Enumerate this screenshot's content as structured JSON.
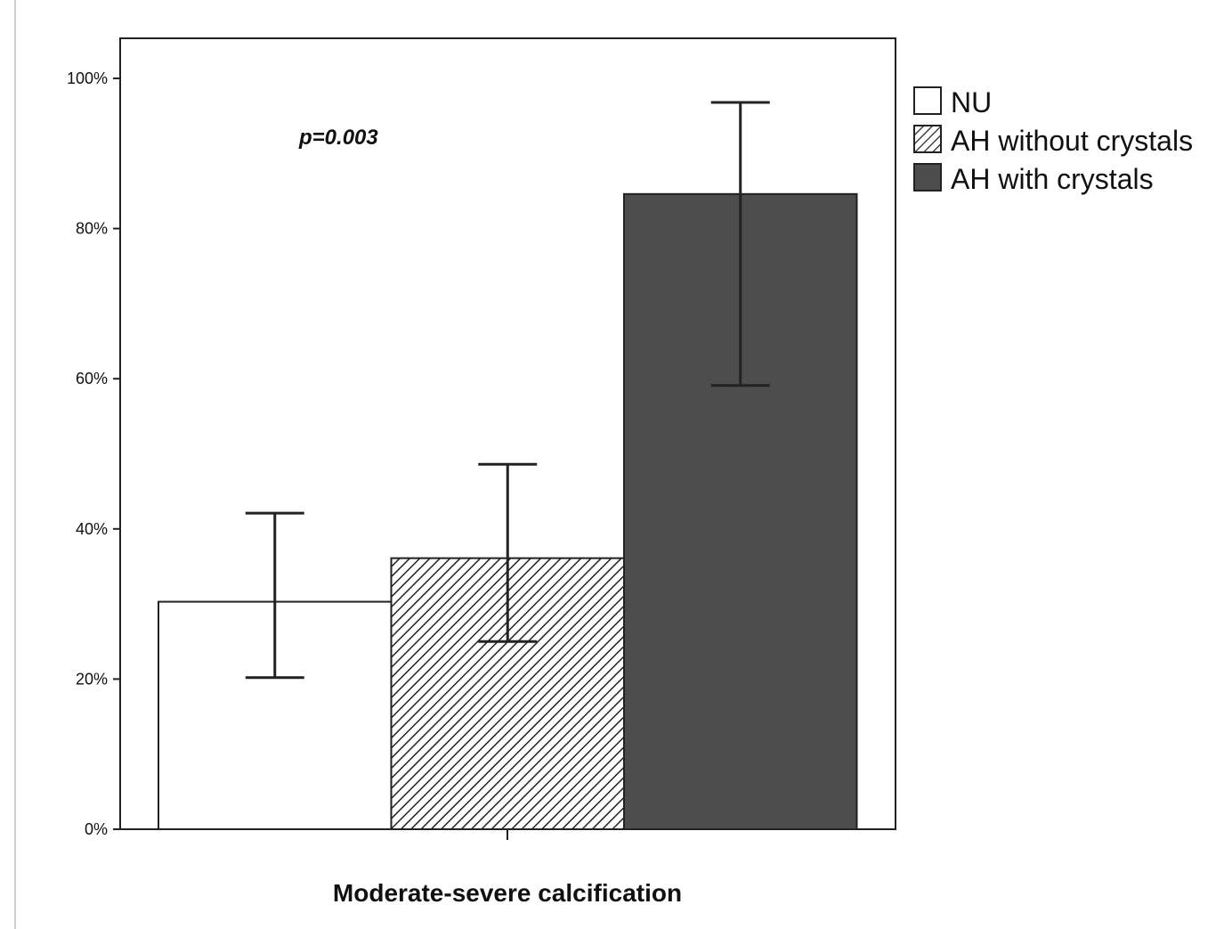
{
  "chart_data": {
    "type": "bar",
    "categories": [
      "Moderate-severe calcification"
    ],
    "xlabel": "Moderate-severe calcification",
    "ylabel": "",
    "ylim": [
      0,
      105
    ],
    "yticks": [
      0,
      20,
      40,
      60,
      80,
      100
    ],
    "ytick_labels": [
      "0%",
      "20%",
      "40%",
      "60%",
      "80%",
      "100%"
    ],
    "annotation": "p=0.003",
    "legend_position": "right",
    "series": [
      {
        "name": "NU",
        "values": [
          30.3
        ],
        "error_low": [
          20.2
        ],
        "error_high": [
          42.1
        ],
        "fill": "white",
        "color": "#ffffff"
      },
      {
        "name": "AH without crystals",
        "values": [
          36.1
        ],
        "error_low": [
          25.0
        ],
        "error_high": [
          48.6
        ],
        "fill": "hatch",
        "color": "#ffffff"
      },
      {
        "name": "AH with crystals",
        "values": [
          84.6
        ],
        "error_low": [
          59.1
        ],
        "error_high": [
          96.8
        ],
        "fill": "solid",
        "color": "#4d4d4d"
      }
    ]
  }
}
